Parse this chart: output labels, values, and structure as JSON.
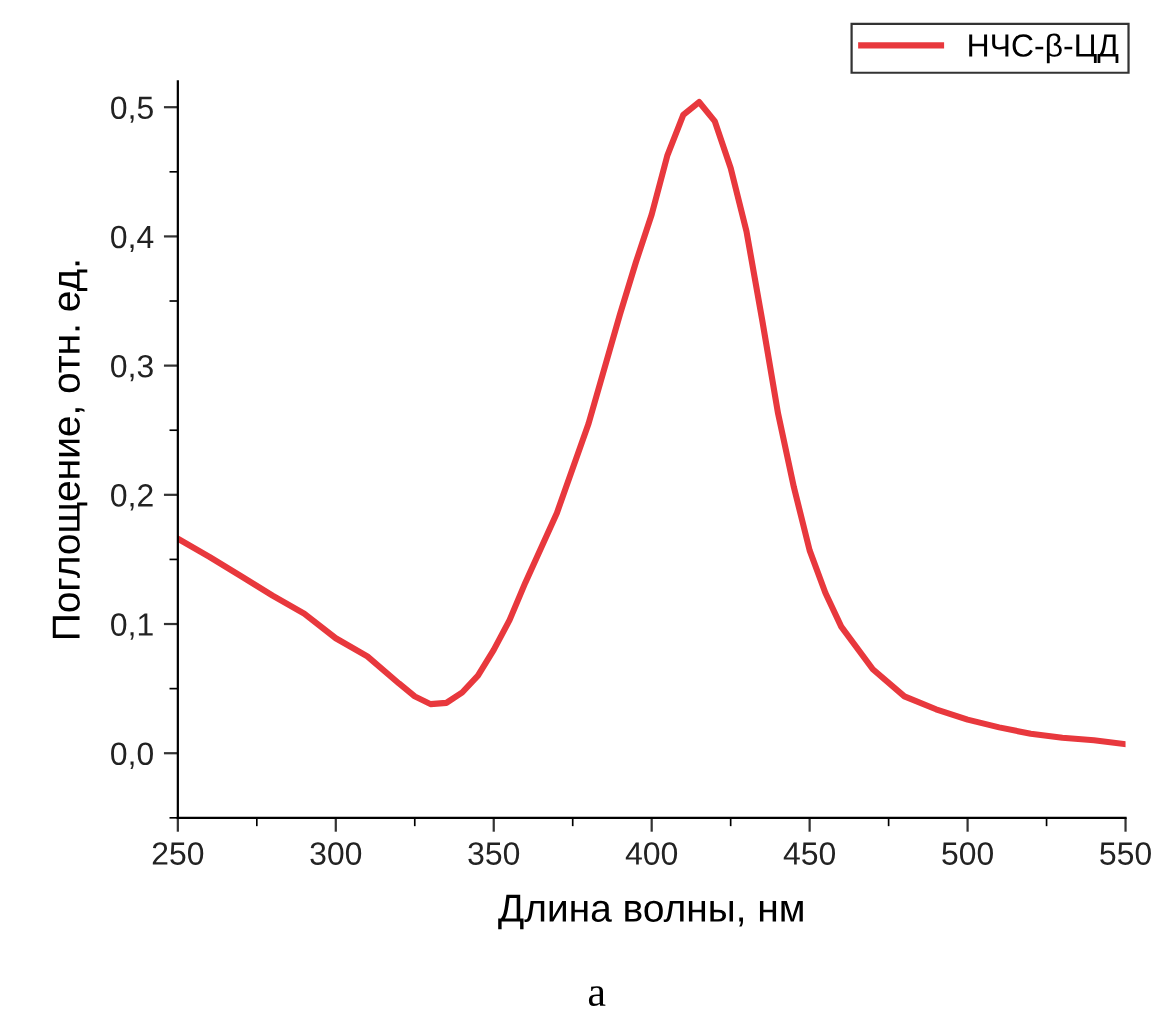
{
  "chart_data": {
    "type": "line",
    "xlabel": "Длина волны, нм",
    "ylabel": "Поглощение, отн. ед.",
    "annotations": [
      "а"
    ],
    "xlim": [
      250,
      550
    ],
    "xticks": [
      250,
      300,
      350,
      400,
      450,
      500,
      550
    ],
    "ylim": [
      -0.05,
      0.52
    ],
    "yticks": [
      {
        "value": 0.0,
        "label": "0,0"
      },
      {
        "value": 0.1,
        "label": "0,1"
      },
      {
        "value": 0.2,
        "label": "0,2"
      },
      {
        "value": 0.3,
        "label": "0,3"
      },
      {
        "value": 0.4,
        "label": "0,4"
      },
      {
        "value": 0.5,
        "label": "0,5"
      }
    ],
    "grid": false,
    "legend": "top right",
    "marker": "none",
    "line_style": "solid",
    "x": [
      250,
      260,
      270,
      280,
      290,
      300,
      310,
      320,
      325,
      330,
      335,
      340,
      345,
      350,
      355,
      360,
      370,
      380,
      390,
      395,
      400,
      405,
      410,
      415,
      420,
      425,
      430,
      435,
      440,
      445,
      450,
      455,
      460,
      470,
      480,
      490,
      500,
      510,
      520,
      530,
      540,
      550
    ],
    "series": [
      {
        "name": "НЧС-β-ЦД",
        "color": "#e8383d",
        "values": [
          0.166,
          0.152,
          0.137,
          0.122,
          0.108,
          0.089,
          0.075,
          0.054,
          0.044,
          0.038,
          0.039,
          0.047,
          0.06,
          0.08,
          0.103,
          0.132,
          0.186,
          0.255,
          0.34,
          0.38,
          0.417,
          0.463,
          0.494,
          0.504,
          0.489,
          0.453,
          0.404,
          0.335,
          0.263,
          0.206,
          0.157,
          0.124,
          0.098,
          0.065,
          0.044,
          0.034,
          0.026,
          0.02,
          0.015,
          0.012,
          0.01,
          0.007
        ]
      }
    ]
  }
}
